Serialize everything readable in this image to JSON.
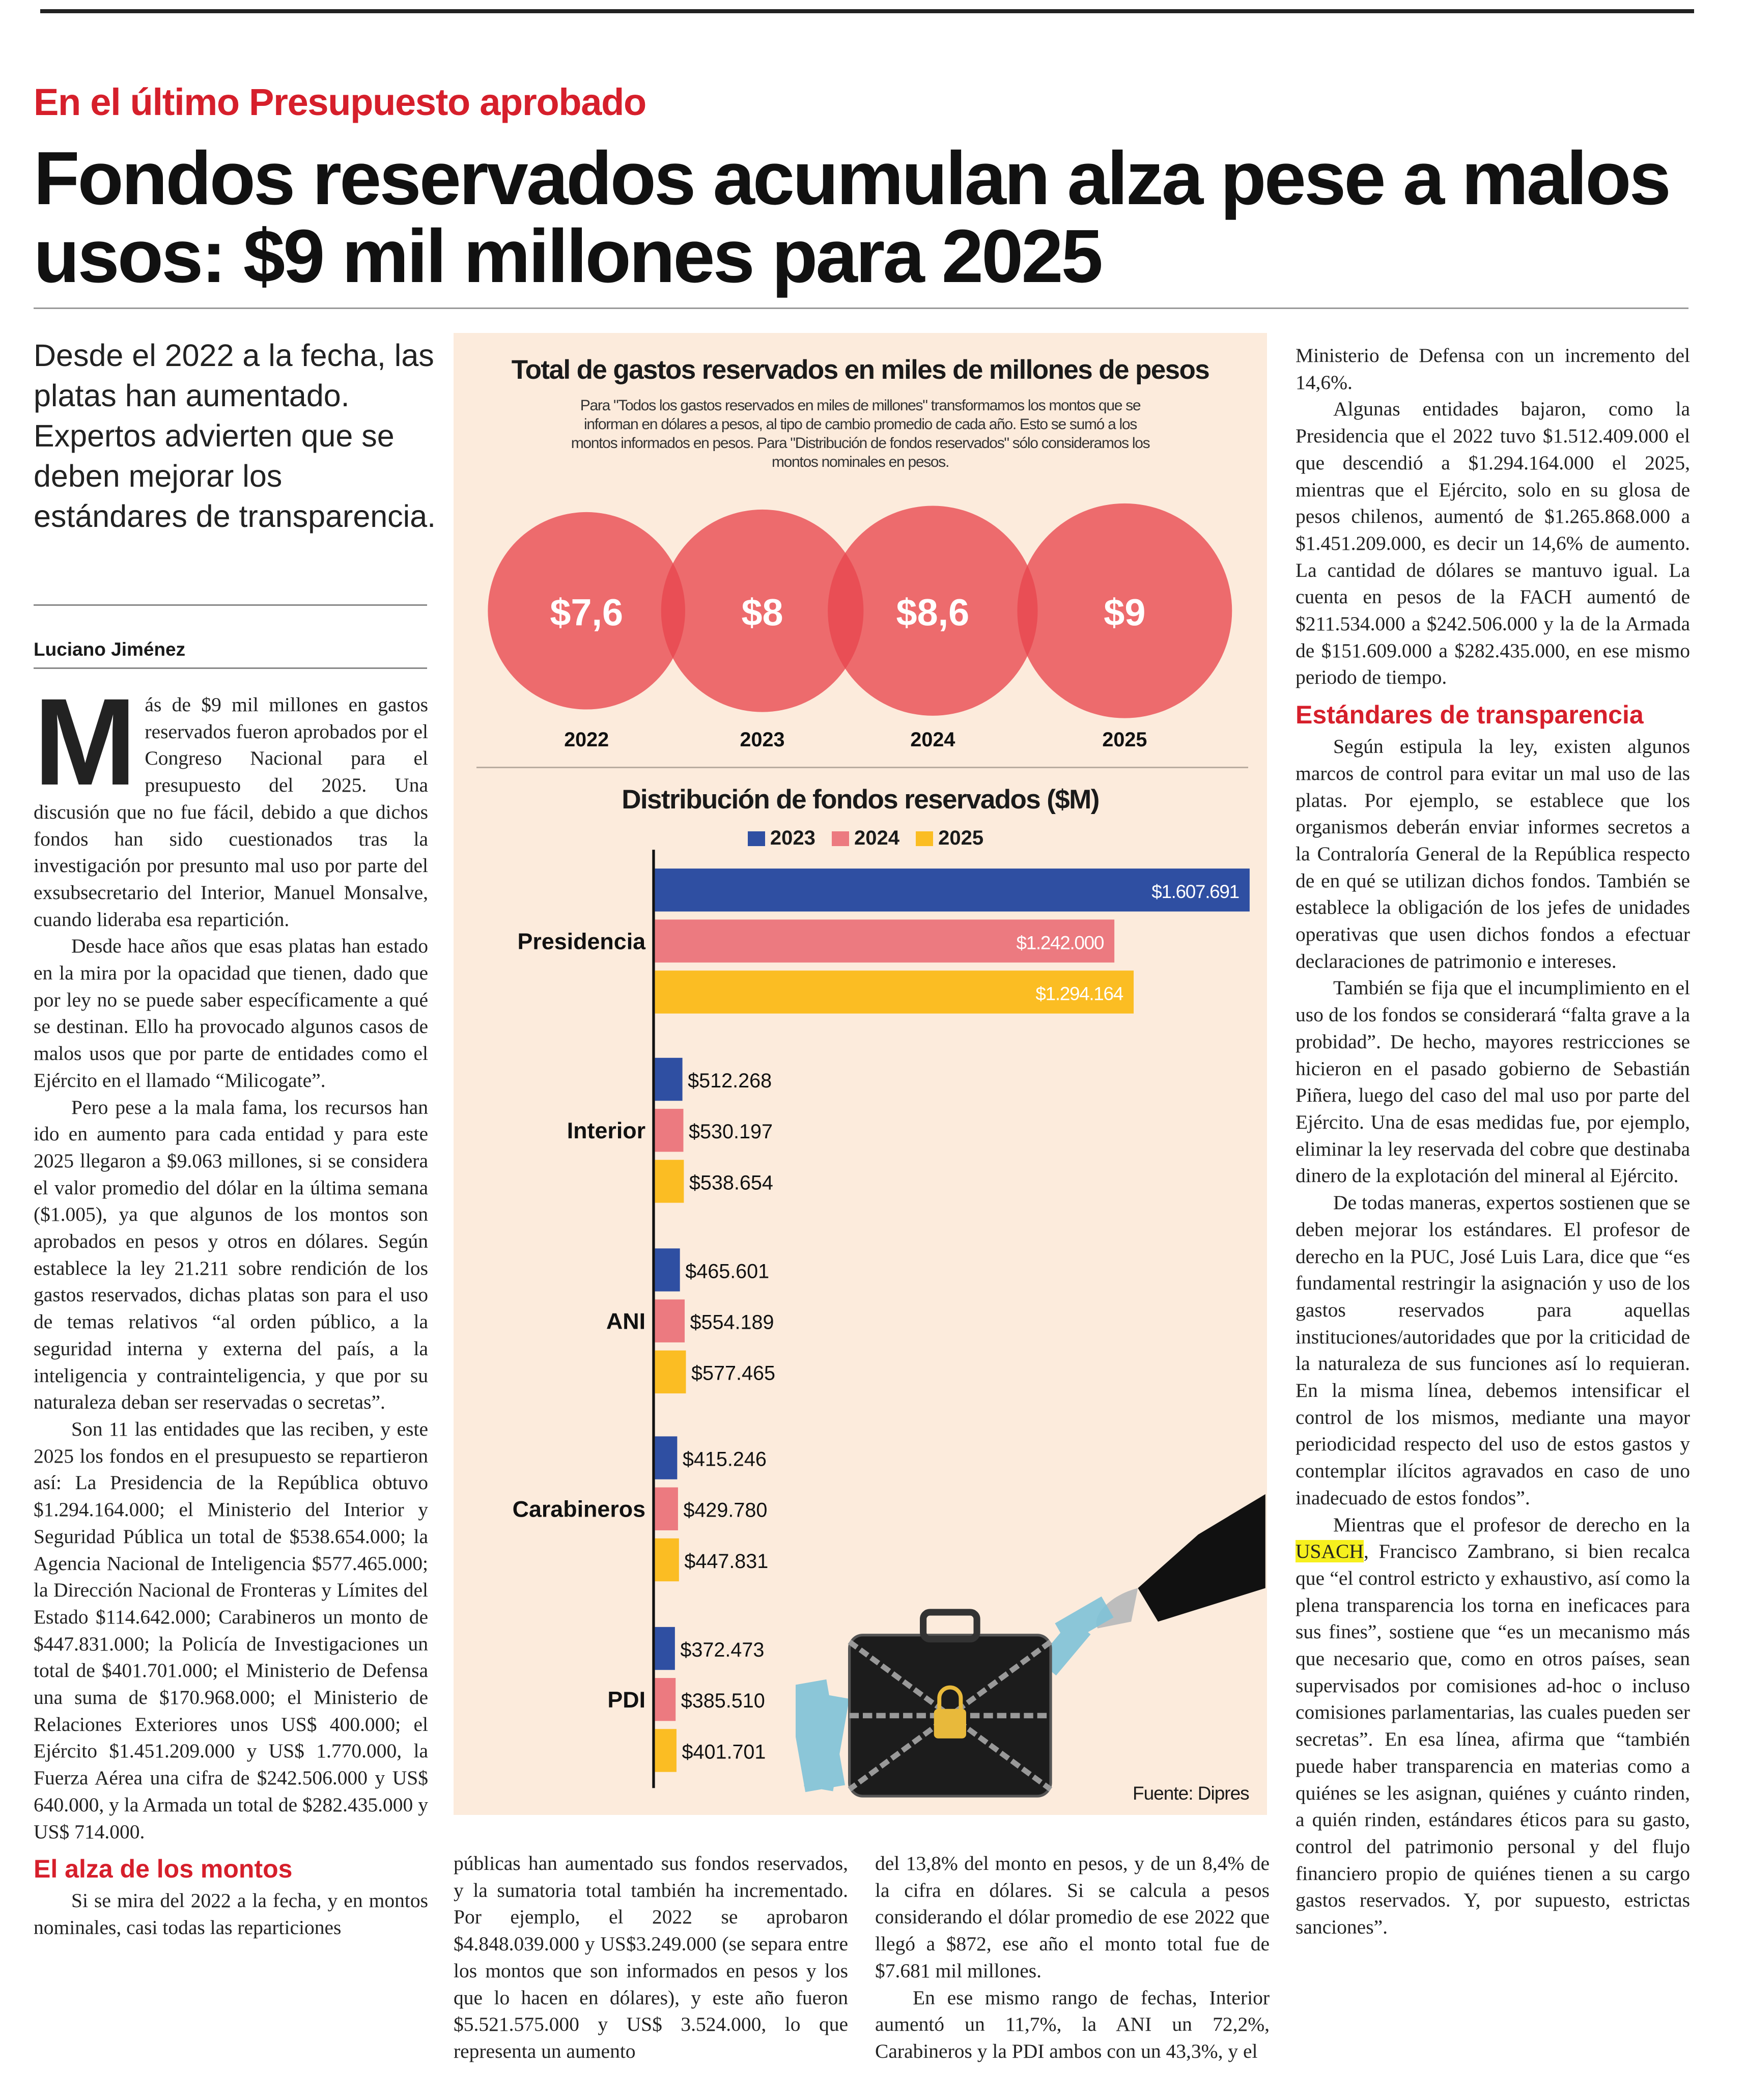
{
  "kicker": "En el último Presupuesto aprobado",
  "headline": "Fondos reservados acumulan alza pese a malos usos: $9 mil millones para 2025",
  "deck": "Desde el 2022 a la fecha, las platas han aumentado. Expertos advierten que se deben mejorar los estándares de transparencia.",
  "byline": "Luciano Jiménez",
  "col1": {
    "dropcap": "M",
    "p1": "ás de $9 mil millones en gastos reservados fueron aprobados por el Congreso Nacional para el presupuesto del 2025. Una discusión que no fue fácil, debido a que dichos fondos han sido cuestionados tras la investigación por presunto mal uso por parte del exsubsecretario del Interior, Manuel Monsalve, cuando lideraba esa repartición.",
    "p2": "Desde hace años que esas platas han estado en la mira por la opacidad que tienen, dado que por ley no se puede saber específicamente a qué se destinan. Ello ha provocado algunos casos de malos usos que por parte de entidades como el Ejército en el llamado “Milicogate”.",
    "p3": "Pero pese a la mala fama, los recursos han ido en aumento para cada entidad y para este 2025 llegaron a $9.063 millones, si se considera el valor promedio del dólar en la última semana ($1.005), ya que algunos de los montos son aprobados en pesos y otros en dólares. Según establece la ley 21.211 sobre rendición de los gastos reservados, dichas platas son para el uso de temas relativos “al orden público, a la seguridad interna y externa del país, a la inteligencia y contrainteligencia, y que por su naturaleza deban ser reservadas o secretas”.",
    "p4": "Son 11 las entidades que las reciben, y este 2025 los fondos en el presupuesto se repartieron así: La Presidencia de la República obtuvo $1.294.164.000; el Ministerio del Interior y Seguridad Pública un total de $538.654.000; la Agencia Nacional de Inteligencia $577.465.000; la Dirección Nacional de Fronteras y Límites del Estado $114.642.000; Carabineros un monto de $447.831.000; la Policía de Investigaciones un total de $401.701.000; el Ministerio de Defensa una suma de $170.968.000; el Ministerio de Relaciones Exteriores unos US$ 400.000; el Ejército $1.451.209.000 y US$ 1.770.000, la Fuerza Aérea una cifra de $242.506.000 y US$ 640.000, y la Armada un total de $282.435.000 y US$ 714.000.",
    "subhead": "El alza de los montos",
    "p5": "Si se mira del 2022 a la fecha, y en montos nominales, casi todas las reparticiones"
  },
  "col2": {
    "p1": "públicas han aumentado sus fondos reservados, y la sumatoria total también ha incrementado. Por ejemplo, el 2022 se aprobaron $4.848.039.000 y US$3.249.000 (se separa entre los montos que son informados en pesos y los que lo hacen en dólares), y este año fueron $5.521.575.000 y US$ 3.524.000, lo que representa un aumento"
  },
  "col3": {
    "p1": "del 13,8% del monto en pesos, y de un 8,4% de la cifra en dólares. Si se calcula a pesos considerando el dólar promedio de ese 2022 que llegó a $872, ese año el monto total fue de $7.681 mil millones.",
    "p2": "En ese mismo rango de fechas, Interior aumentó un 11,7%, la ANI un 72,2%, Carabineros y la PDI ambos con un 43,3%, y el"
  },
  "col4": {
    "p1": "Ministerio de Defensa con un incremento del 14,6%.",
    "p2": "Algunas entidades bajaron, como la Presidencia que el 2022 tuvo $1.512.409.000 el que descendió a $1.294.164.000 el 2025, mientras que el Ejército, solo en su glosa de pesos chilenos, aumentó de $1.265.868.000 a $1.451.209.000, es decir un 14,6% de aumento. La cantidad de dólares se mantuvo igual. La cuenta en pesos de la FACH aumentó de $211.534.000 a $242.506.000 y la de la Armada de $151.609.000 a $282.435.000, en ese mismo periodo de tiempo.",
    "subhead": "Estándares de transparencia",
    "p3": "Según estipula la ley, existen algunos marcos de control para evitar un mal uso de las platas. Por ejemplo, se establece que los organismos deberán enviar informes secretos a la Contraloría General de la República respecto de en qué se utilizan dichos fondos. También se establece la obligación de los jefes de unidades operativas que usen dichos fondos a efectuar declaraciones de patrimonio e intereses.",
    "p4": "También se fija que el incumplimiento en el uso de los fondos se considerará “falta grave a la probidad”. De hecho, mayores restricciones se hicieron en el pasado gobierno de Sebastián Piñera, luego del caso del mal uso por parte del Ejército. Una de esas medidas fue, por ejemplo, eliminar la ley reservada del cobre que destinaba dinero de la explotación del mineral al Ejército.",
    "p5": "De todas maneras, expertos sostienen que se deben mejorar los estándares. El profesor de derecho en la PUC, José Luis Lara, dice que “es fundamental restringir la asignación y uso de los gastos reservados para aquellas instituciones/autoridades que por la criticidad de la naturaleza de sus funciones así lo requieran. En la misma línea, debemos intensificar el control de los mismos, mediante una mayor periodicidad respecto del uso de estos gastos y contemplar ilícitos agravados en caso de uno inadecuado de estos fondos”.",
    "p6_pre": "Mientras que el profesor de derecho en la ",
    "p6_highlight": "USACH",
    "p6_post": ", Francisco Zambrano, si bien recalca que “el control estricto y exhaustivo, así como la plena transparencia los torna en ineficaces para sus fines”, sostiene que “es un mecanismo más que necesario que, como en otros países, sean supervisados por comisiones ad-hoc o incluso comisiones parlamentarias, las cuales pueden ser secretas”. En esa línea, afirma que “también puede haber transparencia en materias como a quiénes se les asignan, quiénes y cuánto rinden, a quién rinden, estándares éticos para su gasto, control del patrimonio personal y del flujo financiero propio de quiénes tienen a su cargo gastos reservados. Y, por supuesto, estrictas sanciones”."
  },
  "infographic": {
    "title": "Total de gastos reservados en miles de millones de pesos",
    "note": "Para \"Todos los gastos reservados en miles de millones\" transformamos los montos que se informan en dólares a pesos, al tipo de cambio promedio de cada año. Esto se sumó a los montos informados en pesos. Para \"Distribución de fondos reservados\" sólo consideramos los montos nominales en pesos.",
    "source": "Fuente: Dipres",
    "illustration": "briefcase-chained-with-money-icon"
  },
  "chart_data": [
    {
      "type": "bubble",
      "title": "Total de gastos reservados en miles de millones de pesos",
      "categories": [
        "2022",
        "2023",
        "2024",
        "2025"
      ],
      "values": [
        7.6,
        8,
        8.6,
        9
      ],
      "labels": [
        "$7,6",
        "$8",
        "$8,6",
        "$9"
      ],
      "color": "#e8474e"
    },
    {
      "type": "bar",
      "orientation": "horizontal",
      "title": "Distribución de fondos reservados ($M)",
      "categories": [
        "Presidencia",
        "Interior",
        "ANI",
        "Carabineros",
        "PDI"
      ],
      "legend": "top",
      "series": [
        {
          "name": "2023",
          "color": "#2f4fa2",
          "values": [
            1607.691,
            512.268,
            465.601,
            415.246,
            372.473
          ],
          "labels": [
            "$1.607.691",
            "$512.268",
            "$465.601",
            "$415.246",
            "$372.473"
          ]
        },
        {
          "name": "2024",
          "color": "#ec7a80",
          "values": [
            1242.0,
            530.197,
            554.189,
            429.78,
            385.51
          ],
          "labels": [
            "$1.242.000",
            "$530.197",
            "$554.189",
            "$429.780",
            "$385.510"
          ]
        },
        {
          "name": "2025",
          "color": "#fbbd23",
          "values": [
            1294.164,
            538.654,
            577.465,
            447.831,
            401.701
          ],
          "labels": [
            "$1.294.164",
            "$538.654",
            "$577.465",
            "$447.831",
            "$401.701"
          ]
        }
      ]
    }
  ]
}
